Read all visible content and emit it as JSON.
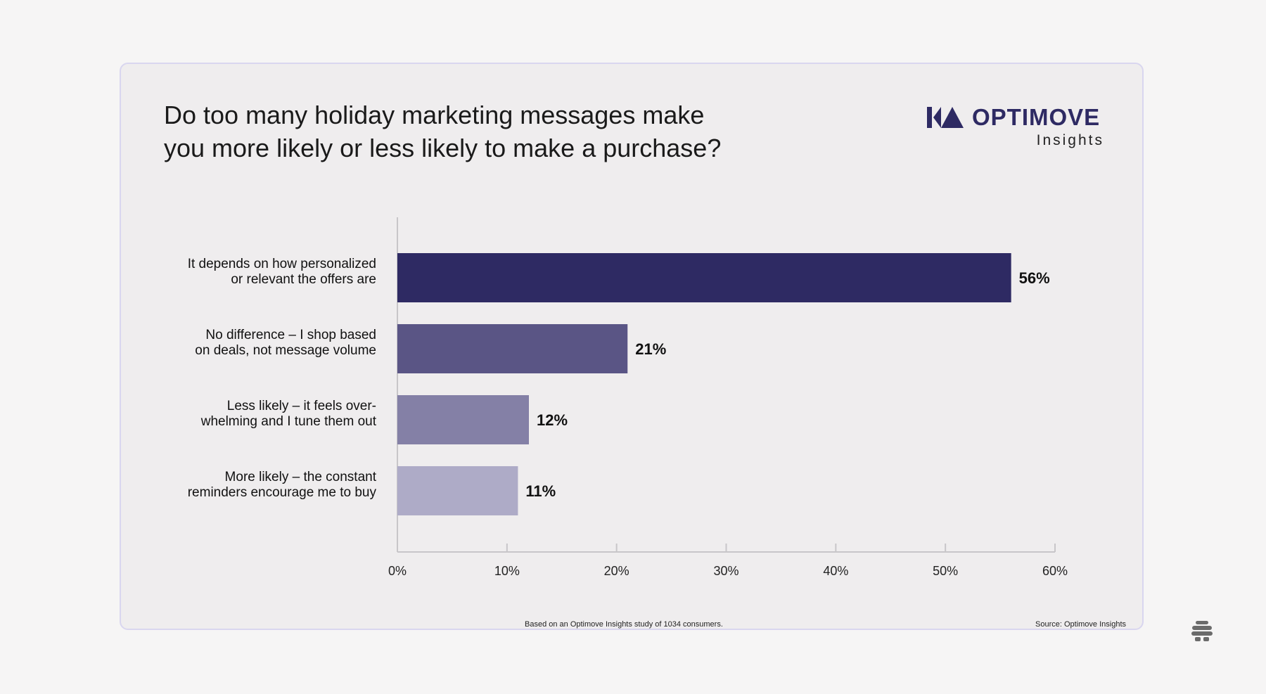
{
  "title_lines": [
    "Do too many holiday marketing messages make",
    "you more likely or less likely to make a purchase?"
  ],
  "brand": {
    "name": "OPTIMOVE",
    "sub": "Insights",
    "logo_icon": "optimove-logo-icon",
    "color": "#2e2a63"
  },
  "chart_data": {
    "type": "bar",
    "orientation": "horizontal",
    "categories": [
      [
        "It depends on how personalized",
        "or relevant the offers are"
      ],
      [
        "No difference – I shop based",
        "on deals, not message volume"
      ],
      [
        "Less likely – it feels over-",
        "whelming and I tune them out"
      ],
      [
        "More likely – the constant",
        "reminders encourage me to buy"
      ]
    ],
    "values": [
      56,
      21,
      12,
      11
    ],
    "value_labels": [
      "56%",
      "21%",
      "12%",
      "11%"
    ],
    "bar_colors": [
      "#2e2a63",
      "#5a5585",
      "#8480a6",
      "#aeabc7"
    ],
    "xlim": [
      0,
      60
    ],
    "xticks": [
      0,
      10,
      20,
      30,
      40,
      50,
      60
    ],
    "xtick_labels": [
      "0%",
      "10%",
      "20%",
      "30%",
      "40%",
      "50%",
      "60%"
    ],
    "grid": false,
    "legend": "none"
  },
  "footnote": "Based on an Optimove Insights study of 1034 consumers.",
  "source": "Source: Optimove Insights",
  "corner_icon": "beehive-icon"
}
